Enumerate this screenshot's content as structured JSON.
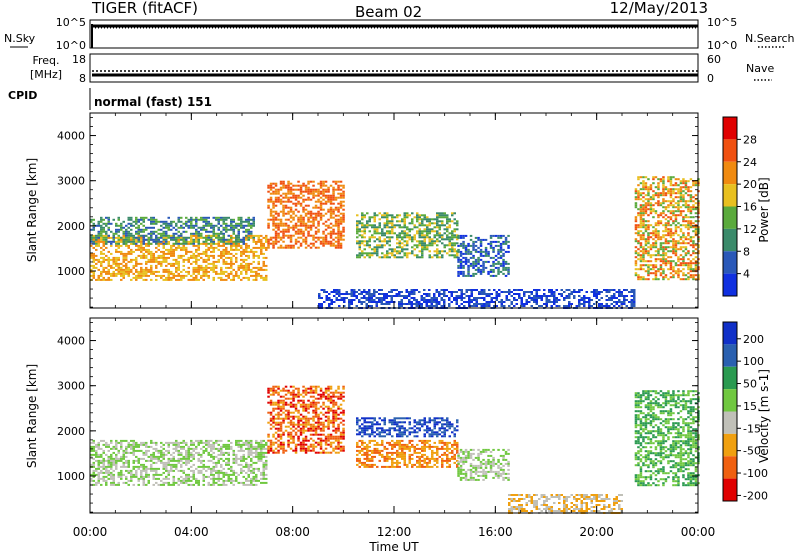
{
  "header": {
    "title": "TIGER (fitACF)",
    "beam": "Beam 02",
    "date": "12/May/2013"
  },
  "sky_panel": {
    "left_label": "N.Sky",
    "right_label": "N.Search",
    "left_ticks": [
      "10^5",
      "10^0"
    ],
    "right_ticks": [
      "10^5",
      "10^0"
    ]
  },
  "freq_panel": {
    "left_label_1": "Freq.",
    "left_label_2": "[MHz]",
    "right_label": "Nave",
    "left_ticks": [
      "18",
      "8"
    ],
    "right_ticks": [
      "60",
      "0"
    ]
  },
  "cpid_panel": {
    "label": "CPID",
    "text": "normal (fast) 151"
  },
  "time_axis": {
    "label": "Time UT",
    "ticks": [
      "00:00",
      "04:00",
      "08:00",
      "12:00",
      "16:00",
      "20:00",
      "00:00"
    ]
  },
  "chart_data": [
    {
      "type": "heatmap",
      "name": "Power",
      "ylabel": "Slant Range [km]",
      "xlabel": "",
      "x_range": [
        "00:00",
        "24:00"
      ],
      "ylim": [
        180,
        4500
      ],
      "yticks": [
        "1000",
        "2000",
        "3000",
        "4000"
      ],
      "colorbar": {
        "label": "Power [dB]",
        "ticks": [
          "4",
          "8",
          "12",
          "16",
          "20",
          "24",
          "28"
        ],
        "colors": [
          "#1030e0",
          "#2a58b8",
          "#3a8a6a",
          "#5aaa3c",
          "#e8c020",
          "#f08a10",
          "#f05010",
          "#e00000"
        ]
      },
      "echo_regions": [
        {
          "t_start": 0.0,
          "t_end": 7.0,
          "range_low": 800,
          "range_high": 1800,
          "value": "20-24"
        },
        {
          "t_start": 0.0,
          "t_end": 6.5,
          "range_low": 1600,
          "range_high": 2200,
          "value": "8-16"
        },
        {
          "t_start": 7.0,
          "t_end": 10.0,
          "range_low": 1500,
          "range_high": 3000,
          "value": "24-28"
        },
        {
          "t_start": 10.5,
          "t_end": 14.5,
          "range_low": 1300,
          "range_high": 2300,
          "value": "12-20"
        },
        {
          "t_start": 14.5,
          "t_end": 16.5,
          "range_low": 900,
          "range_high": 1800,
          "value": "4-12"
        },
        {
          "t_start": 9.0,
          "t_end": 21.5,
          "range_low": 200,
          "range_high": 600,
          "value": "4-8"
        },
        {
          "t_start": 21.5,
          "t_end": 24.0,
          "range_low": 800,
          "range_high": 3100,
          "value": "16-28"
        }
      ]
    },
    {
      "type": "heatmap",
      "name": "Velocity",
      "ylabel": "Slant Range [km]",
      "xlabel": "Time UT",
      "x_range": [
        "00:00",
        "24:00"
      ],
      "ylim": [
        180,
        4500
      ],
      "yticks": [
        "1000",
        "2000",
        "3000",
        "4000"
      ],
      "colorbar": {
        "label": "Velocity [m s-1]",
        "ticks": [
          "200",
          "100",
          "50",
          "15",
          "-15",
          "-50",
          "-100",
          "-200"
        ],
        "colors": [
          "#1030c8",
          "#2a60b0",
          "#2a9a50",
          "#70c840",
          "#c0c0b8",
          "#f0a010",
          "#f06010",
          "#e00000"
        ]
      },
      "echo_regions": [
        {
          "t_start": 0.0,
          "t_end": 7.0,
          "range_low": 800,
          "range_high": 1800,
          "value": "-15..15"
        },
        {
          "t_start": 7.0,
          "t_end": 10.0,
          "range_low": 1500,
          "range_high": 3000,
          "value": "-200..-50"
        },
        {
          "t_start": 10.5,
          "t_end": 14.5,
          "range_low": 1900,
          "range_high": 2300,
          "value": "100..200"
        },
        {
          "t_start": 10.5,
          "t_end": 14.5,
          "range_low": 1200,
          "range_high": 1800,
          "value": "-100..-50"
        },
        {
          "t_start": 14.5,
          "t_end": 16.5,
          "range_low": 900,
          "range_high": 1600,
          "value": "-15..15"
        },
        {
          "t_start": 16.5,
          "t_end": 21.0,
          "range_low": 200,
          "range_high": 600,
          "value": "-50..-15"
        },
        {
          "t_start": 21.5,
          "t_end": 24.0,
          "range_low": 800,
          "range_high": 2900,
          "value": "15..50"
        }
      ]
    }
  ]
}
